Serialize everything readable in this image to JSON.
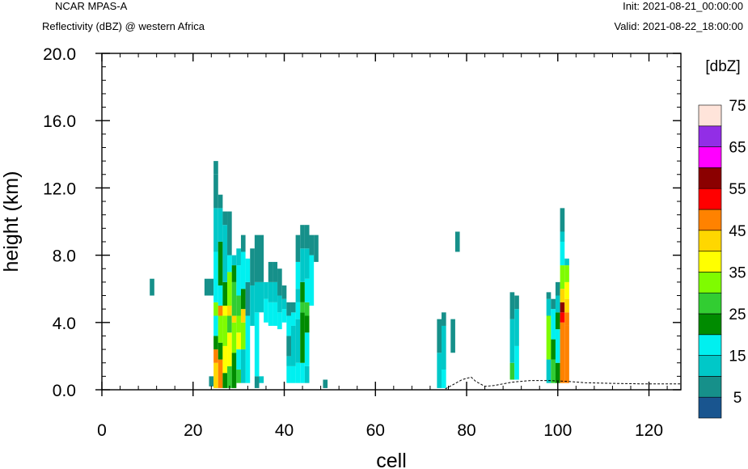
{
  "header": {
    "model": "NCAR MPAS-A",
    "field": "Reflectivity (dBZ) @ western Africa",
    "init": "Init: 2021-08-21_00:00:00",
    "valid": "Valid: 2021-08-22_18:00:00"
  },
  "chart_data": {
    "type": "heatmap",
    "title": "Reflectivity (dBZ) @ western Africa",
    "xlabel": "cell",
    "ylabel": "height (km)",
    "xlim": [
      0,
      127
    ],
    "ylim": [
      0,
      20
    ],
    "xticks": [
      0,
      20,
      40,
      60,
      80,
      100,
      120
    ],
    "xtick_labels": [
      "0",
      "20",
      "40",
      "60",
      "80",
      "100",
      "120"
    ],
    "yticks": [
      0,
      4,
      8,
      12,
      16,
      20
    ],
    "ytick_labels": [
      "0.0",
      "4.0",
      "8.0",
      "12.0",
      "16.0",
      "20.0"
    ],
    "grid": false,
    "colorbar": {
      "unit_label": "[dbZ]",
      "levels": [
        0,
        5,
        10,
        15,
        20,
        25,
        30,
        35,
        40,
        45,
        50,
        55,
        60,
        65,
        70,
        75,
        80
      ],
      "colors": [
        "#19558f",
        "#16908a",
        "#00c8c8",
        "#00f0f0",
        "#008b00",
        "#32cd32",
        "#7ffc00",
        "#ffff00",
        "#ffd700",
        "#ff8200",
        "#ff0000",
        "#8b0000",
        "#ff00ff",
        "#922ee6",
        "#ffe4da"
      ],
      "tick_labels": [
        "5",
        "15",
        "25",
        "35",
        "45",
        "55",
        "65",
        "75"
      ]
    },
    "columns": [
      {
        "x": 11,
        "segments": [
          [
            5.6,
            6.6,
            5
          ]
        ]
      },
      {
        "x": 23,
        "segments": [
          [
            5.6,
            6.6,
            5
          ]
        ]
      },
      {
        "x": 24,
        "segments": [
          [
            0.2,
            0.8,
            5
          ],
          [
            5.6,
            6.6,
            5
          ]
        ]
      },
      {
        "x": 25,
        "segments": [
          [
            0.1,
            1.6,
            40
          ],
          [
            1.6,
            2.4,
            45
          ],
          [
            2.4,
            3.2,
            20
          ],
          [
            3.2,
            4.4,
            15
          ],
          [
            4.4,
            5.2,
            30
          ],
          [
            5.2,
            8.2,
            15
          ],
          [
            8.2,
            10.8,
            10
          ],
          [
            10.8,
            12.8,
            5
          ],
          [
            12.8,
            13.6,
            5
          ]
        ]
      },
      {
        "x": 26,
        "segments": [
          [
            0.1,
            1.8,
            45
          ],
          [
            1.8,
            2.8,
            20
          ],
          [
            2.8,
            4.4,
            30
          ],
          [
            4.4,
            5.0,
            45
          ],
          [
            5.0,
            6.2,
            15
          ],
          [
            6.2,
            8.8,
            20
          ],
          [
            8.8,
            10.8,
            10
          ],
          [
            10.8,
            11.6,
            5
          ]
        ]
      },
      {
        "x": 27,
        "segments": [
          [
            0.1,
            1.0,
            20
          ],
          [
            1.0,
            2.6,
            35
          ],
          [
            2.6,
            4.4,
            30
          ],
          [
            4.4,
            5.0,
            35
          ],
          [
            5.0,
            6.4,
            20
          ],
          [
            6.4,
            9.8,
            10
          ],
          [
            9.8,
            10.6,
            5
          ]
        ]
      },
      {
        "x": 28,
        "segments": [
          [
            0.1,
            1.4,
            25
          ],
          [
            1.4,
            3.4,
            35
          ],
          [
            3.4,
            4.4,
            25
          ],
          [
            4.4,
            5.0,
            40
          ],
          [
            5.0,
            7.0,
            30
          ],
          [
            7.0,
            8.0,
            15
          ],
          [
            8.0,
            10.6,
            5
          ]
        ]
      },
      {
        "x": 29,
        "segments": [
          [
            0.1,
            2.2,
            20
          ],
          [
            2.2,
            4.0,
            30
          ],
          [
            4.0,
            4.4,
            40
          ],
          [
            4.4,
            6.4,
            25
          ],
          [
            6.4,
            7.4,
            20
          ],
          [
            7.4,
            8.0,
            10
          ]
        ]
      },
      {
        "x": 30,
        "segments": [
          [
            0.4,
            1.2,
            25
          ],
          [
            1.2,
            2.4,
            15
          ],
          [
            2.4,
            3.4,
            35
          ],
          [
            3.4,
            4.4,
            30
          ],
          [
            4.4,
            5.6,
            25
          ],
          [
            5.6,
            7.4,
            15
          ],
          [
            7.4,
            8.4,
            10
          ]
        ]
      },
      {
        "x": 31,
        "segments": [
          [
            0.4,
            2.4,
            10
          ],
          [
            2.4,
            4.0,
            30
          ],
          [
            4.0,
            4.8,
            40
          ],
          [
            4.8,
            6.0,
            20
          ],
          [
            6.0,
            8.2,
            15
          ],
          [
            8.2,
            9.2,
            5
          ]
        ]
      },
      {
        "x": 32,
        "segments": [
          [
            0.4,
            4.4,
            15
          ],
          [
            4.4,
            6.4,
            5
          ],
          [
            6.4,
            7.8,
            15
          ]
        ]
      },
      {
        "x": 33,
        "segments": [
          [
            3.8,
            6.2,
            10
          ],
          [
            6.2,
            8.4,
            5
          ]
        ]
      },
      {
        "x": 34,
        "segments": [
          [
            0.1,
            0.8,
            5
          ],
          [
            0.8,
            4.6,
            15
          ],
          [
            4.6,
            6.4,
            10
          ],
          [
            6.4,
            9.2,
            5
          ]
        ]
      },
      {
        "x": 35,
        "segments": [
          [
            0.4,
            0.8,
            10
          ],
          [
            4.6,
            6.4,
            10
          ],
          [
            6.4,
            9.2,
            5
          ]
        ]
      },
      {
        "x": 36,
        "segments": [
          [
            4.0,
            5.4,
            15
          ],
          [
            5.4,
            6.4,
            10
          ]
        ]
      },
      {
        "x": 37,
        "segments": [
          [
            3.8,
            5.2,
            15
          ],
          [
            5.2,
            6.4,
            10
          ],
          [
            6.4,
            7.6,
            5
          ]
        ]
      },
      {
        "x": 38,
        "segments": [
          [
            3.8,
            5.2,
            15
          ],
          [
            5.2,
            6.4,
            10
          ],
          [
            6.4,
            7.6,
            5
          ]
        ]
      },
      {
        "x": 39,
        "segments": [
          [
            3.6,
            4.6,
            15
          ],
          [
            4.6,
            5.6,
            10
          ],
          [
            5.6,
            7.2,
            5
          ]
        ]
      },
      {
        "x": 40,
        "segments": [
          [
            4.0,
            4.8,
            15
          ],
          [
            4.8,
            5.4,
            10
          ],
          [
            5.4,
            6.2,
            5
          ]
        ]
      },
      {
        "x": 41,
        "segments": [
          [
            0.4,
            1.4,
            15
          ],
          [
            1.4,
            2.0,
            10
          ],
          [
            2.0,
            3.2,
            5
          ],
          [
            3.2,
            4.4,
            15
          ],
          [
            4.4,
            5.2,
            5
          ]
        ]
      },
      {
        "x": 42,
        "segments": [
          [
            0.4,
            1.4,
            15
          ],
          [
            1.4,
            3.8,
            10
          ],
          [
            3.8,
            4.6,
            15
          ],
          [
            4.6,
            5.2,
            5
          ]
        ]
      },
      {
        "x": 43,
        "segments": [
          [
            0.4,
            1.6,
            15
          ],
          [
            1.6,
            4.2,
            10
          ],
          [
            4.2,
            5.2,
            15
          ],
          [
            5.2,
            6.0,
            10
          ],
          [
            6.0,
            7.6,
            15
          ],
          [
            7.6,
            9.2,
            5
          ]
        ]
      },
      {
        "x": 44,
        "segments": [
          [
            0.4,
            1.6,
            15
          ],
          [
            1.6,
            4.6,
            20
          ],
          [
            4.6,
            5.2,
            25
          ],
          [
            5.2,
            6.4,
            20
          ],
          [
            6.4,
            8.4,
            10
          ],
          [
            8.4,
            9.8,
            5
          ]
        ]
      },
      {
        "x": 45,
        "segments": [
          [
            0.4,
            1.4,
            10
          ],
          [
            1.4,
            3.4,
            15
          ],
          [
            3.4,
            4.4,
            20
          ],
          [
            4.4,
            5.2,
            25
          ],
          [
            5.2,
            6.6,
            15
          ],
          [
            6.6,
            8.4,
            10
          ],
          [
            8.4,
            9.8,
            5
          ]
        ]
      },
      {
        "x": 46,
        "segments": [
          [
            5.0,
            8.0,
            15
          ],
          [
            8.0,
            9.2,
            5
          ]
        ]
      },
      {
        "x": 47,
        "segments": [
          [
            7.6,
            9.2,
            5
          ]
        ]
      },
      {
        "x": 49,
        "segments": [
          [
            0.1,
            0.6,
            5
          ]
        ]
      },
      {
        "x": 74,
        "segments": [
          [
            0.1,
            2.2,
            10
          ],
          [
            2.2,
            4.2,
            5
          ]
        ]
      },
      {
        "x": 75,
        "segments": [
          [
            0.1,
            1.2,
            15
          ],
          [
            1.2,
            3.8,
            10
          ],
          [
            3.8,
            4.6,
            5
          ]
        ]
      },
      {
        "x": 77,
        "segments": [
          [
            2.2,
            4.2,
            5
          ]
        ]
      },
      {
        "x": 78,
        "segments": [
          [
            8.2,
            9.4,
            5
          ]
        ]
      },
      {
        "x": 90,
        "segments": [
          [
            0.6,
            1.6,
            25
          ],
          [
            1.6,
            4.2,
            10
          ],
          [
            4.2,
            5.8,
            5
          ]
        ]
      },
      {
        "x": 91,
        "segments": [
          [
            0.6,
            2.6,
            15
          ],
          [
            2.6,
            4.8,
            10
          ],
          [
            4.8,
            5.6,
            5
          ]
        ]
      },
      {
        "x": 98,
        "segments": [
          [
            0.4,
            1.8,
            10
          ],
          [
            1.8,
            4.4,
            30
          ],
          [
            4.4,
            5.4,
            10
          ],
          [
            5.4,
            5.8,
            5
          ]
        ]
      },
      {
        "x": 99,
        "segments": [
          [
            0.4,
            1.8,
            25
          ],
          [
            1.8,
            3.0,
            20
          ],
          [
            3.0,
            4.8,
            15
          ],
          [
            4.8,
            5.4,
            5
          ]
        ]
      },
      {
        "x": 100,
        "segments": [
          [
            0.4,
            1.6,
            20
          ],
          [
            1.6,
            3.6,
            15
          ],
          [
            3.6,
            4.6,
            20
          ],
          [
            4.6,
            5.6,
            10
          ],
          [
            5.6,
            6.4,
            5
          ]
        ]
      },
      {
        "x": 101,
        "segments": [
          [
            0.4,
            4.0,
            45
          ],
          [
            4.0,
            4.6,
            50
          ],
          [
            4.6,
            5.2,
            55
          ],
          [
            5.2,
            6.0,
            40
          ],
          [
            6.0,
            7.4,
            30
          ],
          [
            7.4,
            8.8,
            15
          ],
          [
            8.8,
            9.4,
            10
          ],
          [
            9.4,
            10.8,
            5
          ]
        ]
      },
      {
        "x": 102,
        "segments": [
          [
            0.4,
            3.8,
            45
          ],
          [
            3.8,
            4.6,
            45
          ],
          [
            4.6,
            5.4,
            40
          ],
          [
            5.4,
            6.4,
            35
          ],
          [
            6.4,
            7.4,
            30
          ],
          [
            7.4,
            7.8,
            10
          ]
        ]
      }
    ],
    "terrain": [
      [
        0,
        0.0
      ],
      [
        75,
        0.0
      ],
      [
        77,
        0.3
      ],
      [
        79,
        0.6
      ],
      [
        81,
        0.75
      ],
      [
        82,
        0.5
      ],
      [
        84,
        0.2
      ],
      [
        86,
        0.25
      ],
      [
        88,
        0.35
      ],
      [
        90,
        0.45
      ],
      [
        94,
        0.55
      ],
      [
        98,
        0.55
      ],
      [
        102,
        0.5
      ],
      [
        106,
        0.42
      ],
      [
        112,
        0.38
      ],
      [
        118,
        0.35
      ],
      [
        124,
        0.35
      ],
      [
        127,
        0.35
      ]
    ]
  }
}
